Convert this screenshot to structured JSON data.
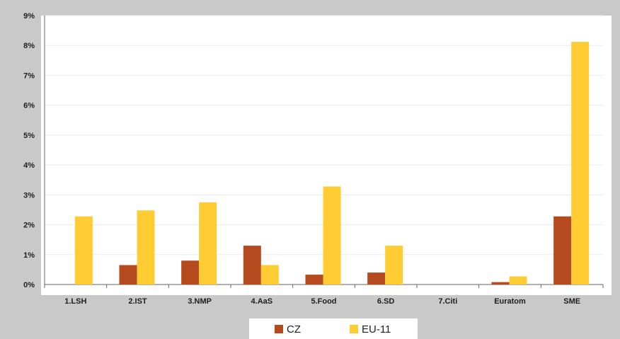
{
  "chart_data": {
    "type": "bar",
    "categories": [
      "1.LSH",
      "2.IST",
      "3.NMP",
      "4.AaS",
      "5.Food",
      "6.SD",
      "7.Citi",
      "Euratom",
      "SME"
    ],
    "series": [
      {
        "name": "CZ",
        "color": "#b44a1e",
        "values": [
          0,
          0.65,
          0.8,
          1.3,
          0.33,
          0.4,
          0,
          0.08,
          2.28
        ]
      },
      {
        "name": "EU-11",
        "color": "#ffcc33",
        "values": [
          2.28,
          2.48,
          2.75,
          0.65,
          3.28,
          1.3,
          0,
          0.27,
          8.12
        ]
      }
    ],
    "y_ticks": [
      "0%",
      "1%",
      "2%",
      "3%",
      "4%",
      "5%",
      "6%",
      "7%",
      "8%",
      "9%"
    ],
    "ylim": [
      0,
      9
    ],
    "y_unit": "%",
    "grid": true,
    "legend_position": "bottom"
  }
}
